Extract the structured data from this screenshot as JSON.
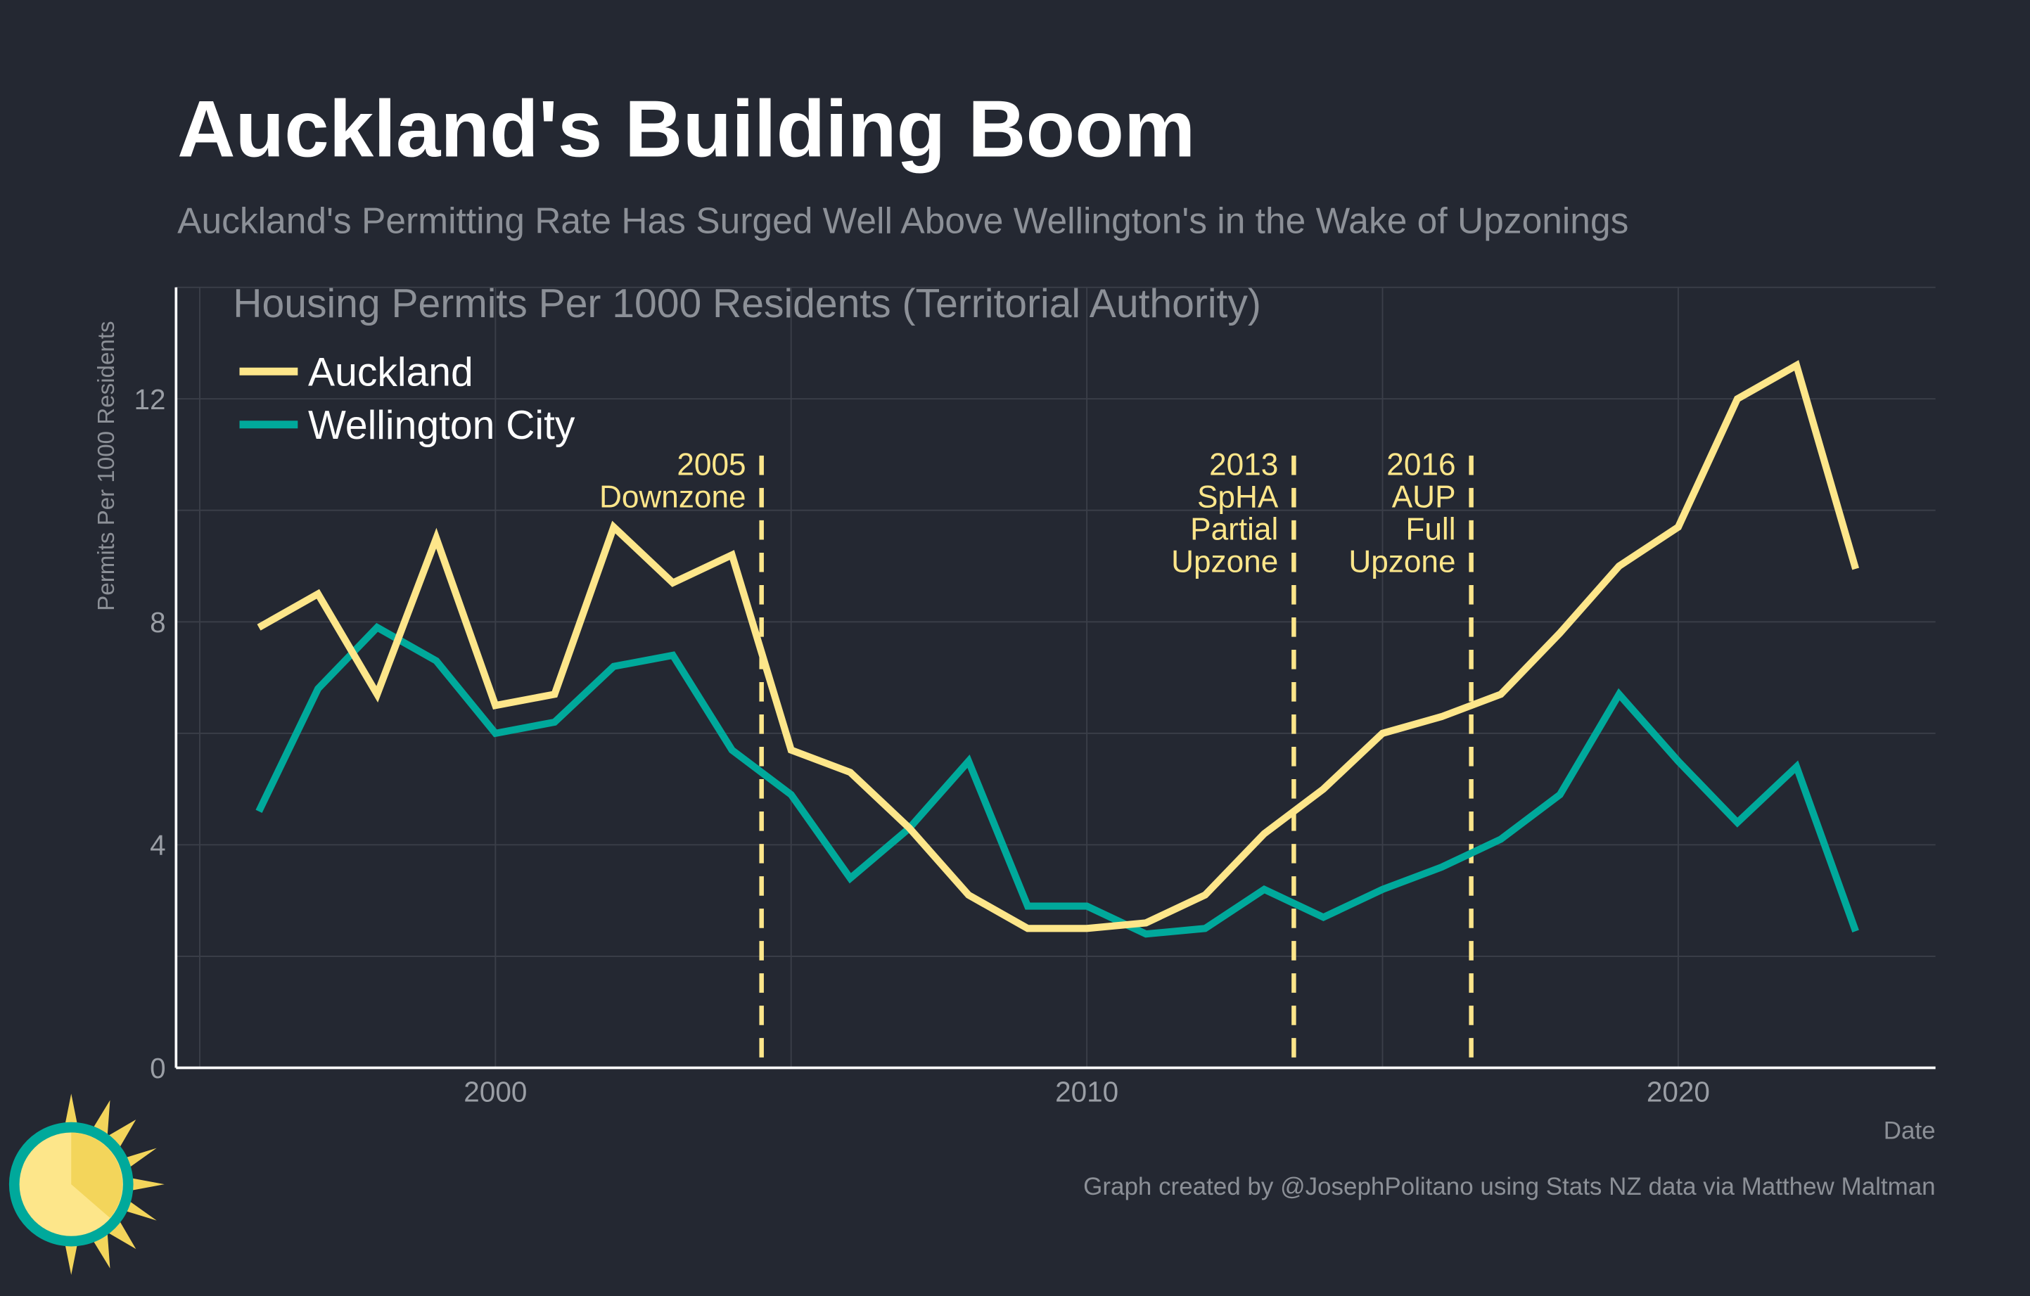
{
  "title": "Auckland's Building Boom",
  "subtitle": "Auckland's Permitting Rate Has Surged Well Above Wellington's in the Wake of Upzonings",
  "caption": "Graph created by @JosephPolitano using Stats NZ data via Matthew Maltman",
  "colors": {
    "background": "#242832",
    "auckland": "#fde68a",
    "wellington": "#00a99b",
    "grid": "#3b3f49"
  },
  "chart_data": {
    "type": "line",
    "title": "Housing Permits Per 1000 Residents (Territorial Authority)",
    "xlabel": "Date",
    "ylabel": "Permits Per 1000 Residents",
    "xlim": [
      1994.6,
      2024.35
    ],
    "ylim": [
      0,
      14
    ],
    "x_ticks": [
      2000,
      2010,
      2020
    ],
    "y_ticks": [
      0,
      4,
      8,
      12
    ],
    "grid": true,
    "legend_position": "top-left",
    "x": [
      1996,
      1997,
      1998,
      1999,
      2000,
      2001,
      2002,
      2003,
      2004,
      2005,
      2006,
      2007,
      2008,
      2009,
      2010,
      2011,
      2012,
      2013,
      2014,
      2015,
      2016,
      2017,
      2018,
      2019,
      2020,
      2021,
      2022,
      2023
    ],
    "series": [
      {
        "name": "Auckland",
        "color": "#fde68a",
        "values": [
          7.9,
          8.5,
          6.7,
          9.5,
          6.5,
          6.7,
          9.7,
          8.7,
          9.2,
          5.7,
          5.3,
          4.3,
          3.1,
          2.5,
          2.5,
          2.6,
          3.1,
          4.2,
          5.0,
          6.0,
          6.3,
          6.7,
          7.8,
          9.0,
          9.7,
          12.0,
          12.6,
          8.95
        ]
      },
      {
        "name": "Wellington City",
        "color": "#00a99b",
        "values": [
          4.6,
          6.8,
          7.9,
          7.3,
          6.0,
          6.2,
          7.2,
          7.4,
          5.7,
          4.9,
          3.4,
          4.3,
          5.5,
          2.9,
          2.9,
          2.4,
          2.5,
          3.2,
          2.7,
          3.2,
          3.6,
          4.1,
          4.9,
          6.7,
          5.5,
          4.4,
          5.4,
          2.45
        ]
      }
    ],
    "annotations": [
      {
        "x": 2004.5,
        "lines": [
          "2005",
          "Downzone"
        ]
      },
      {
        "x": 2013.5,
        "lines": [
          "2013",
          "SpHA",
          "Partial",
          "Upzone"
        ]
      },
      {
        "x": 2016.5,
        "lines": [
          "2016",
          "AUP",
          "Full",
          "Upzone"
        ]
      }
    ]
  }
}
